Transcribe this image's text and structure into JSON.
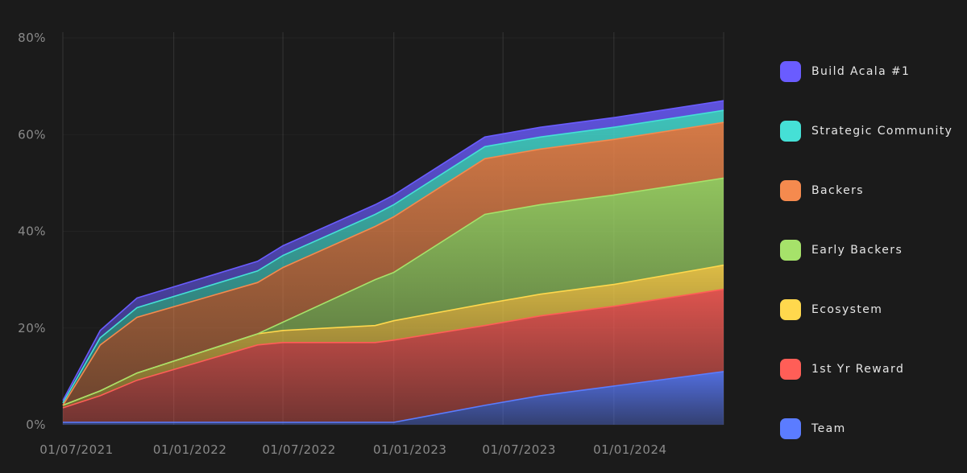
{
  "chart_data": {
    "type": "area",
    "stacked": true,
    "title": "",
    "xlabel": "",
    "ylabel": "",
    "ylim": [
      0,
      80
    ],
    "y_ticks": [
      "0%",
      "20%",
      "40%",
      "60%",
      "80%"
    ],
    "x_ticks": [
      "01/07/2021",
      "01/01/2022",
      "01/07/2022",
      "01/01/2023",
      "01/07/2023",
      "01/01/2024"
    ],
    "x_range": [
      "2021-07-01",
      "2024-07-01"
    ],
    "grid": "vertical",
    "legend_position": "right",
    "x": [
      "2021-07-01",
      "2021-09-01",
      "2021-11-01",
      "2022-05-20",
      "2022-07-01",
      "2022-12-01",
      "2023-01-01",
      "2023-06-01",
      "2023-09-01",
      "2024-01-01",
      "2024-07-01"
    ],
    "series": [
      {
        "name": "Team",
        "color": "#5b7cff",
        "values": [
          0.5,
          0.5,
          0.5,
          0.5,
          0.5,
          0.5,
          0.5,
          4,
          6,
          8,
          11
        ]
      },
      {
        "name": "1st Yr Reward",
        "color": "#ff5e57",
        "values": [
          3,
          5.5,
          8.7,
          16,
          16.5,
          16.5,
          17,
          16.5,
          16.5,
          16.5,
          17
        ]
      },
      {
        "name": "Ecosystem",
        "color": "#ffd84d",
        "values": [
          0.5,
          1,
          1.5,
          2.3,
          2.5,
          3.5,
          4,
          4.5,
          4.5,
          4.5,
          5
        ]
      },
      {
        "name": "Early Backers",
        "color": "#a6e26a",
        "values": [
          0,
          0,
          0,
          0,
          1.7,
          9.5,
          10,
          18.5,
          18.5,
          18.5,
          18
        ]
      },
      {
        "name": "Backers",
        "color": "#f58a4e",
        "values": [
          0,
          9.5,
          11.5,
          10.6,
          11.3,
          11,
          11.5,
          11.5,
          11.5,
          11.5,
          11.5
        ]
      },
      {
        "name": "Strategic Community",
        "color": "#45e0d6",
        "values": [
          0.5,
          1.5,
          2,
          2.4,
          2.5,
          2.5,
          2.5,
          2.5,
          2.5,
          2.5,
          2.5
        ]
      },
      {
        "name": "Build Acala #1",
        "color": "#6a5cff",
        "values": [
          0.5,
          1.5,
          2,
          2,
          2,
          2,
          2,
          2,
          2,
          2,
          2
        ]
      }
    ]
  }
}
